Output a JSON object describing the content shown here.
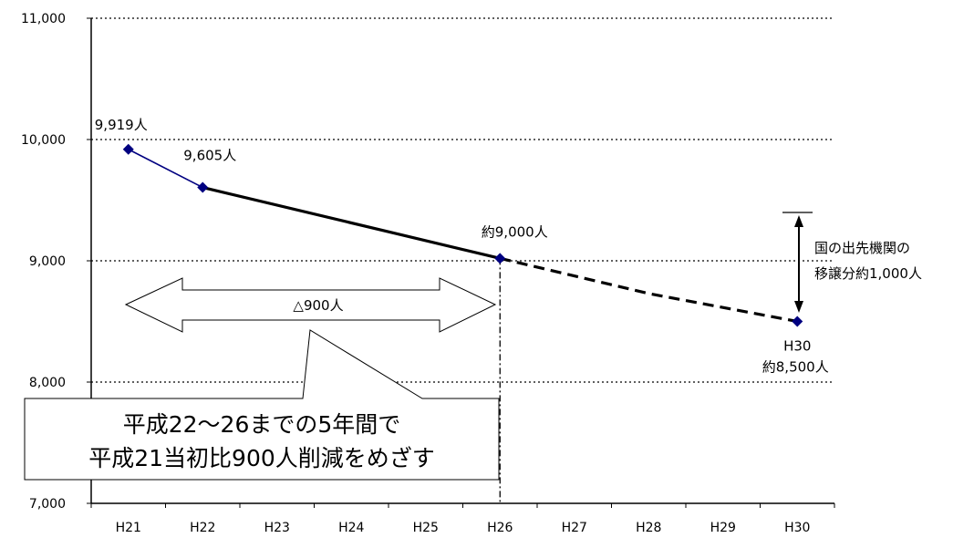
{
  "chart_data": {
    "type": "line",
    "categories": [
      "H21",
      "H22",
      "H23",
      "H24",
      "H25",
      "H26",
      "H27",
      "H28",
      "H29",
      "H30"
    ],
    "ylim": [
      7000,
      11000
    ],
    "yticks": [
      7000,
      8000,
      9000,
      10000,
      11000
    ],
    "ytick_labels": [
      "7,000",
      "8,000",
      "9,000",
      "10,000",
      "11,000"
    ],
    "grid": "horizontal dotted",
    "series": [
      {
        "segment": "actual",
        "style": "solid",
        "color": "#000080",
        "points": [
          {
            "x": "H21",
            "y": 9919
          },
          {
            "x": "H22",
            "y": 9605
          }
        ]
      },
      {
        "segment": "plan",
        "style": "solid",
        "color": "#000000",
        "points": [
          {
            "x": "H22",
            "y": 9605
          },
          {
            "x": "H26",
            "y": 9020
          }
        ]
      },
      {
        "segment": "projection",
        "style": "dashed",
        "color": "#000000",
        "points": [
          {
            "x": "H26",
            "y": 9020
          },
          {
            "x": "H28",
            "y": 8730
          },
          {
            "x": "H30",
            "y": 8500
          }
        ]
      }
    ],
    "markers": [
      {
        "x": "H21",
        "y": 9919
      },
      {
        "x": "H22",
        "y": 9605
      },
      {
        "x": "H26",
        "y": 9020
      },
      {
        "x": "H30",
        "y": 8500
      }
    ],
    "marker_color": "#000080",
    "data_labels": [
      {
        "x": "H21",
        "lines": [
          "9,919人"
        ]
      },
      {
        "x": "H22",
        "lines": [
          "9,605人"
        ]
      },
      {
        "x": "H26",
        "lines": [
          "約9,000人"
        ]
      },
      {
        "x": "H30",
        "lines": [
          "H30",
          "約8,500人"
        ]
      }
    ],
    "annotations": {
      "reduction_arrow_label": "△900人",
      "transfer_label": [
        "国の出先機関の",
        "移譲分約1,000人"
      ],
      "callout": [
        "平成22～26までの5年間で",
        "平成21当初比900人削減をめざす"
      ]
    }
  }
}
